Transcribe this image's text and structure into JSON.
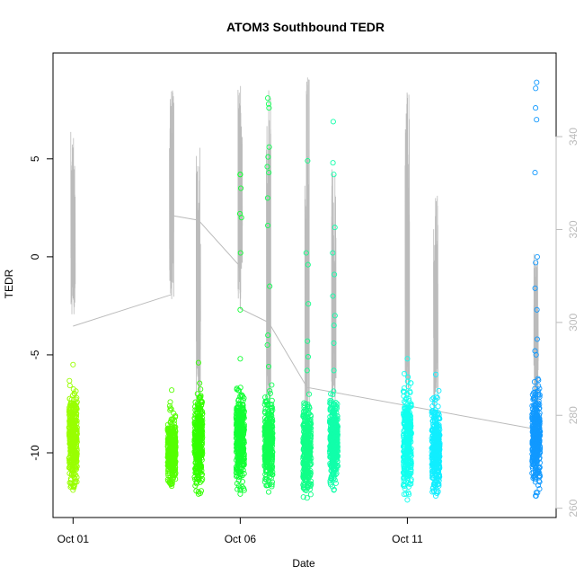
{
  "chart_data": {
    "type": "scatter",
    "title": "ATOM3 Southbound TEDR",
    "xlabel": "Date",
    "ylabel": "TEDR",
    "ylim": [
      -13.3,
      10.4
    ],
    "y2lim": [
      258,
      358
    ],
    "grid": false,
    "y_ticks": [
      -10,
      -5,
      0,
      5
    ],
    "y2_ticks": [
      260,
      280,
      300,
      320,
      340
    ],
    "x_ticks": [
      {
        "label": "Oct 01",
        "day": 1.0
      },
      {
        "label": "Oct 06",
        "day": 6.0
      },
      {
        "label": "Oct 11",
        "day": 11.0
      }
    ],
    "xlim": [
      0.4,
      15.45
    ],
    "series": [
      {
        "color": "#99ff00",
        "day": 1.0,
        "y_min": -11.9,
        "y_max": -5.5,
        "outliers": []
      },
      {
        "color": "#55ff00",
        "day": 3.95,
        "y_min": -11.7,
        "y_max": -6.8,
        "outliers": []
      },
      {
        "color": "#33ff00",
        "day": 4.75,
        "y_min": -12.1,
        "y_max": -5.4,
        "outliers": []
      },
      {
        "color": "#11ff33",
        "day": 6.0,
        "y_min": -12.1,
        "y_max": -5.2,
        "outliers": [
          4.2,
          4.2,
          3.5,
          2.0,
          2.2,
          0.2,
          -2.7
        ]
      },
      {
        "color": "#11ff55",
        "day": 6.85,
        "y_min": -12.0,
        "y_max": -5.6,
        "outliers": [
          8.1,
          7.8,
          7.6,
          5.6,
          5.1,
          4.6,
          4.3,
          3.0,
          1.6,
          -1.5,
          -4.0,
          -4.5
        ]
      },
      {
        "color": "#11ff88",
        "day": 8.0,
        "y_min": -12.3,
        "y_max": -5.8,
        "outliers": [
          4.9,
          0.2,
          -0.4,
          -2.4,
          -4.3,
          -5.1
        ]
      },
      {
        "color": "#11ffaa",
        "day": 8.8,
        "y_min": -11.9,
        "y_max": -5.8,
        "outliers": [
          6.9,
          4.8,
          4.2,
          1.5,
          0.2,
          -0.9,
          -2.0,
          -3.0,
          -3.5,
          -4.4
        ]
      },
      {
        "color": "#11ffee",
        "day": 11.0,
        "y_min": -12.4,
        "y_max": -5.2,
        "outliers": []
      },
      {
        "color": "#11eeff",
        "day": 11.85,
        "y_min": -12.2,
        "y_max": -6.0,
        "outliers": []
      },
      {
        "color": "#1199ff",
        "day": 14.85,
        "y_min": -12.2,
        "y_max": -5.0,
        "outliers": [
          8.9,
          8.6,
          7.6,
          7.0,
          4.3,
          0.0,
          -0.3,
          -1.6,
          -2.7,
          -4.2,
          -4.8
        ]
      }
    ],
    "secondary_line": {
      "color": "#bbbbbb",
      "axis": "right",
      "segments": [
        {
          "day": 1.0,
          "y2_min": 301,
          "y2_max": 341
        },
        {
          "day": 3.95,
          "y2_min": 305,
          "y2_max": 350
        },
        {
          "day": 4.75,
          "y2_min": 282,
          "y2_max": 340
        },
        {
          "day": 6.0,
          "y2_min": 305,
          "y2_max": 351
        },
        {
          "day": 6.85,
          "y2_min": 282,
          "y2_max": 350
        },
        {
          "day": 8.0,
          "y2_min": 280,
          "y2_max": 355
        },
        {
          "day": 8.8,
          "y2_min": 281,
          "y2_max": 333
        },
        {
          "day": 11.0,
          "y2_min": 283,
          "y2_max": 353
        },
        {
          "day": 11.85,
          "y2_min": 281,
          "y2_max": 328
        },
        {
          "day": 14.85,
          "y2_min": 282,
          "y2_max": 315
        }
      ],
      "connectors": [
        [
          1.0,
          299.2
        ],
        [
          3.95,
          306
        ],
        [
          3.95,
          323
        ],
        [
          4.75,
          322
        ],
        [
          6.0,
          312
        ],
        [
          6.0,
          303
        ],
        [
          6.85,
          300
        ],
        [
          8.0,
          286
        ],
        [
          14.85,
          277
        ]
      ]
    }
  }
}
